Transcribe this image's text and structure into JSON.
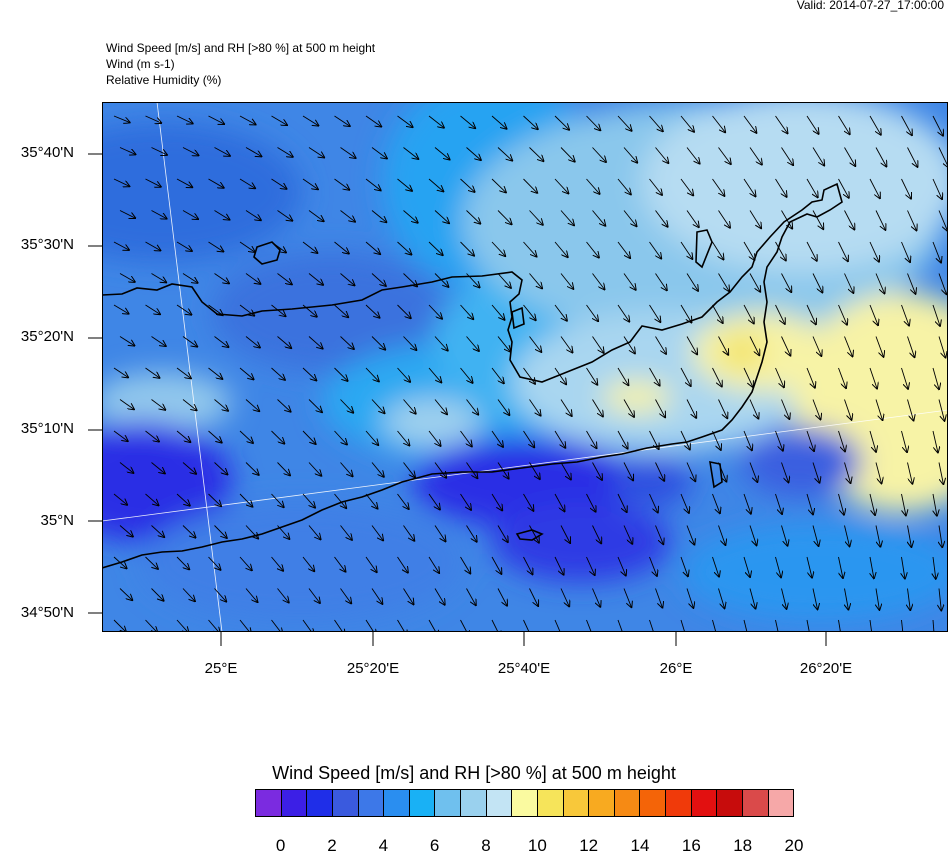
{
  "valid_label": "Valid: 2014-07-27_17:00:00",
  "header": {
    "line1": "Wind Speed [m/s] and RH [>80 %] at 500 m height",
    "line2": "Wind   (m s-1)",
    "line3": "Relative Humidity   (%)"
  },
  "lat_labels": [
    "35°40'N",
    "35°30'N",
    "35°20'N",
    "35°10'N",
    "35°N",
    "34°50'N"
  ],
  "lon_labels": [
    "25°E",
    "25°20'E",
    "25°40'E",
    "26°E",
    "26°20'E"
  ],
  "colorbar": {
    "title": "Wind Speed [m/s] and RH [>80 %] at 500 m height",
    "colors": [
      "#7b2be0",
      "#3c1fe6",
      "#1f2ee8",
      "#3a5ade",
      "#3d78e8",
      "#2a8ef0",
      "#19b1f5",
      "#6fc0ee",
      "#9ad1ee",
      "#c3e4f4",
      "#fafaa0",
      "#f6e45a",
      "#f8c83a",
      "#f8aa20",
      "#f68a14",
      "#f46408",
      "#f03a0a",
      "#e21010",
      "#c70c0c",
      "#da4a4a",
      "#f6a8a8"
    ],
    "labels": [
      "0",
      "2",
      "4",
      "6",
      "8",
      "10",
      "12",
      "14",
      "16",
      "18",
      "20"
    ]
  },
  "wind_speed_field_colors": [
    "#2f6ddd",
    "#4088e8",
    "#2392f0",
    "#52b3ee",
    "#8ac7ec",
    "#c0e2f2",
    "#f7f3a6",
    "#f2e262",
    "#2a2ee5"
  ]
}
